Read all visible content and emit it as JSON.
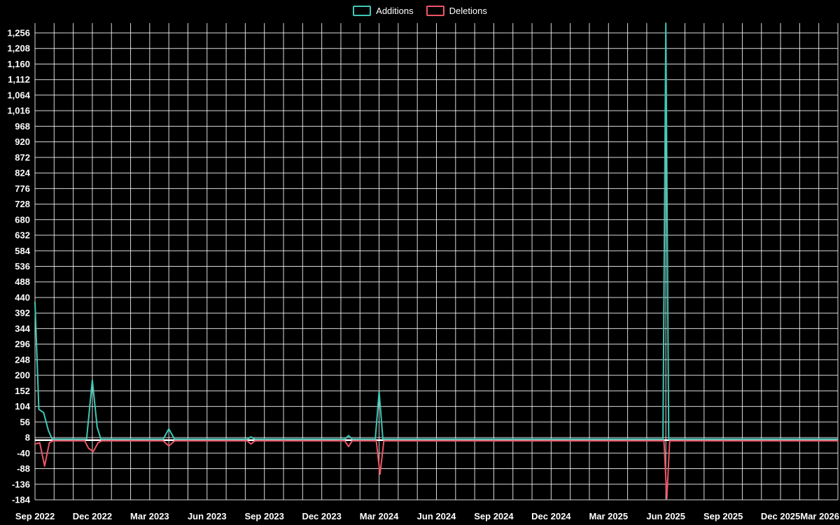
{
  "legend": {
    "position": "top-center",
    "items": [
      {
        "label": "Additions",
        "color": "#3EC8B5"
      },
      {
        "label": "Deletions",
        "color": "#EE5566"
      }
    ]
  },
  "chart_data": {
    "type": "line",
    "title": "",
    "xlabel": "",
    "ylabel": "",
    "background": "#000000",
    "text_color": "#FFFFFF",
    "gridline_color": "#FFFFFF",
    "grid": true,
    "legend_position": "top-center",
    "x_axis": {
      "start_label": "Sep 2022",
      "end_label": "Mar 2026",
      "months_span": 42,
      "gridline_every_months": 1,
      "label_every_months": 3
    },
    "y_axis": {
      "min": -184,
      "max": 1256,
      "tick_step": 48
    },
    "x_ticks": [
      {
        "m": 0,
        "label": "Sep 2022"
      },
      {
        "m": 3,
        "label": "Dec 2022"
      },
      {
        "m": 6,
        "label": "Mar 2023"
      },
      {
        "m": 9,
        "label": "Jun 2023"
      },
      {
        "m": 12,
        "label": "Sep 2023"
      },
      {
        "m": 15,
        "label": "Dec 2023"
      },
      {
        "m": 18,
        "label": "Mar 2024"
      },
      {
        "m": 21,
        "label": "Jun 2024"
      },
      {
        "m": 24,
        "label": "Sep 2024"
      },
      {
        "m": 27,
        "label": "Dec 2024"
      },
      {
        "m": 30,
        "label": "Mar 2025"
      },
      {
        "m": 33,
        "label": "Jun 2025"
      },
      {
        "m": 36,
        "label": "Sep 2025"
      },
      {
        "m": 39,
        "label": "Dec 2025"
      },
      {
        "m": 42,
        "label": "Mar 2026"
      }
    ],
    "y_ticks": [
      {
        "v": -184,
        "label": "-184"
      },
      {
        "v": -136,
        "label": "-136"
      },
      {
        "v": -88,
        "label": "-88"
      },
      {
        "v": -40,
        "label": "-40"
      },
      {
        "v": 8,
        "label": "8"
      },
      {
        "v": 56,
        "label": "56"
      },
      {
        "v": 104,
        "label": "104"
      },
      {
        "v": 152,
        "label": "152"
      },
      {
        "v": 200,
        "label": "200"
      },
      {
        "v": 248,
        "label": "248"
      },
      {
        "v": 296,
        "label": "296"
      },
      {
        "v": 344,
        "label": "344"
      },
      {
        "v": 392,
        "label": "392"
      },
      {
        "v": 440,
        "label": "440"
      },
      {
        "v": 488,
        "label": "488"
      },
      {
        "v": 536,
        "label": "536"
      },
      {
        "v": 584,
        "label": "584"
      },
      {
        "v": 632,
        "label": "632"
      },
      {
        "v": 680,
        "label": "680"
      },
      {
        "v": 728,
        "label": "728"
      },
      {
        "v": 776,
        "label": "776"
      },
      {
        "v": 824,
        "label": "824"
      },
      {
        "v": 872,
        "label": "872"
      },
      {
        "v": 920,
        "label": "920"
      },
      {
        "v": 968,
        "label": "968"
      },
      {
        "v": 1016,
        "label": "1,016"
      },
      {
        "v": 1064,
        "label": "1,064"
      },
      {
        "v": 1112,
        "label": "1,112"
      },
      {
        "v": 1160,
        "label": "1,160"
      },
      {
        "v": 1208,
        "label": "1,208"
      },
      {
        "v": 1256,
        "label": "1,256"
      }
    ],
    "series": [
      {
        "name": "Additions",
        "color": "#3EC8B5",
        "points": [
          [
            0,
            425
          ],
          [
            0.2,
            95
          ],
          [
            0.45,
            85
          ],
          [
            0.7,
            30
          ],
          [
            0.9,
            3
          ],
          [
            2.7,
            3
          ],
          [
            3.0,
            185
          ],
          [
            3.25,
            40
          ],
          [
            3.45,
            3
          ],
          [
            6.7,
            3
          ],
          [
            7.0,
            35
          ],
          [
            7.3,
            3
          ],
          [
            11.1,
            3
          ],
          [
            11.3,
            10
          ],
          [
            11.5,
            3
          ],
          [
            16.2,
            3
          ],
          [
            16.4,
            14
          ],
          [
            16.6,
            3
          ],
          [
            17.8,
            3
          ],
          [
            18.0,
            150
          ],
          [
            18.2,
            3
          ],
          [
            32.85,
            3
          ],
          [
            33.0,
            1286
          ],
          [
            33.15,
            3
          ],
          [
            42,
            3
          ]
        ]
      },
      {
        "name": "Deletions",
        "color": "#EE5566",
        "points": [
          [
            0,
            -12
          ],
          [
            0.25,
            -8
          ],
          [
            0.5,
            -80
          ],
          [
            0.75,
            -8
          ],
          [
            0.95,
            -2
          ],
          [
            2.6,
            -2
          ],
          [
            2.8,
            -25
          ],
          [
            3.05,
            -35
          ],
          [
            3.3,
            -8
          ],
          [
            3.5,
            -2
          ],
          [
            6.7,
            -2
          ],
          [
            7.0,
            -18
          ],
          [
            7.3,
            -2
          ],
          [
            11.1,
            -2
          ],
          [
            11.3,
            -12
          ],
          [
            11.5,
            -2
          ],
          [
            16.2,
            -2
          ],
          [
            16.4,
            -20
          ],
          [
            16.6,
            -2
          ],
          [
            17.85,
            -2
          ],
          [
            18.05,
            -105
          ],
          [
            18.25,
            -2
          ],
          [
            32.9,
            -2
          ],
          [
            33.05,
            -180
          ],
          [
            33.2,
            -2
          ],
          [
            42,
            -2
          ]
        ]
      }
    ]
  }
}
